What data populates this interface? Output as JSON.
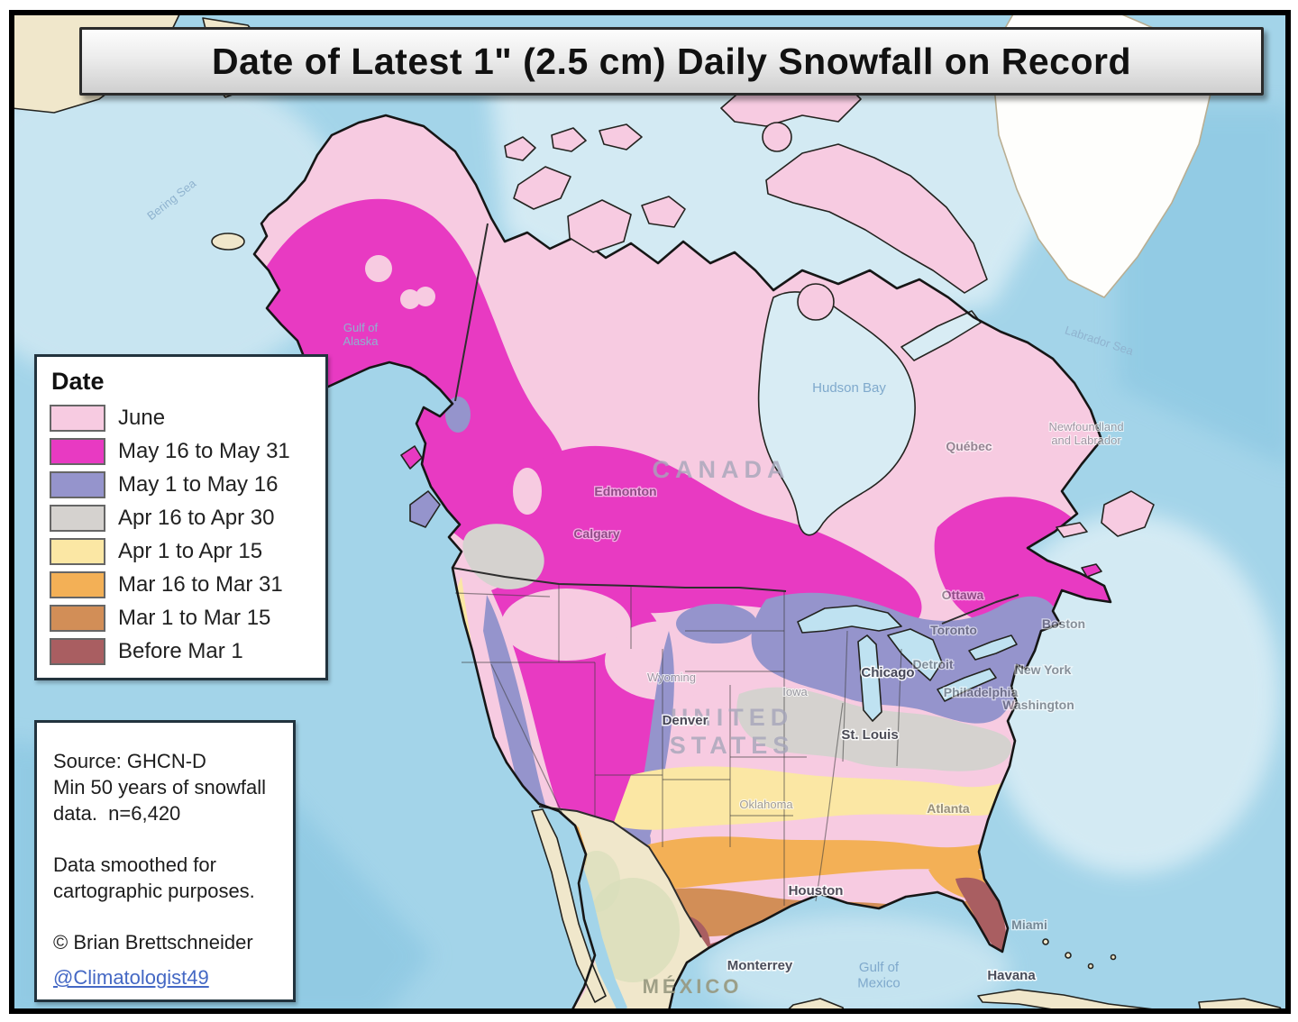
{
  "title": "Date of Latest 1\" (2.5 cm) Daily Snowfall on Record",
  "legend": {
    "title": "Date",
    "items": [
      {
        "label": "June",
        "color": "#F7CBE1"
      },
      {
        "label": "May 16 to May 31",
        "color": "#E83AC2"
      },
      {
        "label": "May 1 to May 16",
        "color": "#9594CC"
      },
      {
        "label": "Apr 16 to Apr 30",
        "color": "#D5D2CF"
      },
      {
        "label": "Apr 1 to Apr 15",
        "color": "#FBE7A4"
      },
      {
        "label": "Mar 16 to Mar 31",
        "color": "#F3B056"
      },
      {
        "label": "Mar 1 to Mar 15",
        "color": "#D28E57"
      },
      {
        "label": "Before Mar 1",
        "color": "#A95E61"
      }
    ]
  },
  "source_box": {
    "line1": "Source: GHCN-D",
    "line2": "Min 50 years of snowfall data.  n=6,420",
    "line3": "Data smoothed for cartographic purposes.",
    "line4": "© Brian Brettschneider",
    "link": "@Climatologist49"
  },
  "map_colors": {
    "ocean": "#A3D4E9",
    "ocean_light": "#CDE7F2",
    "ocean_icy": "#D9EDF5",
    "ocean_deep": "#8FC9E3",
    "land_nodata": "#F0E7CB",
    "land_green": "#D9DEBA",
    "greenland": "#FEFEFC",
    "lakes": "#BFE2F1",
    "hudson_bay": "#D8ECF4"
  },
  "map_labels": {
    "canada": "CANADA",
    "united_states": "UNITED\nSTATES",
    "mexico": "MÉXICO",
    "hudson_bay": "Hudson Bay",
    "gulf_of_mexico": "Gulf of\nMexico",
    "bering_sea": "Bering Sea",
    "gulf_of_alaska": "Gulf of\nAlaska",
    "labrador_sea": "Labrador Sea",
    "newfoundland": "Newfoundland\nand Labrador",
    "edmonton": "Edmonton",
    "calgary": "Calgary",
    "denver": "Denver",
    "chicago": "Chicago",
    "st_louis": "St. Louis",
    "atlanta": "Atlanta",
    "houston": "Houston",
    "boston": "Boston",
    "new_york": "New York",
    "philadelphia": "Philadelphia",
    "washington": "Washington",
    "toronto": "Toronto",
    "ottawa": "Ottawa",
    "quebec": "Québec",
    "detroit": "Detroit",
    "monterrey": "Monterrey",
    "havana": "Havana",
    "miami": "Miami",
    "iowa": "Iowa",
    "wyoming": "Wyoming",
    "oklahoma": "Oklahoma"
  }
}
